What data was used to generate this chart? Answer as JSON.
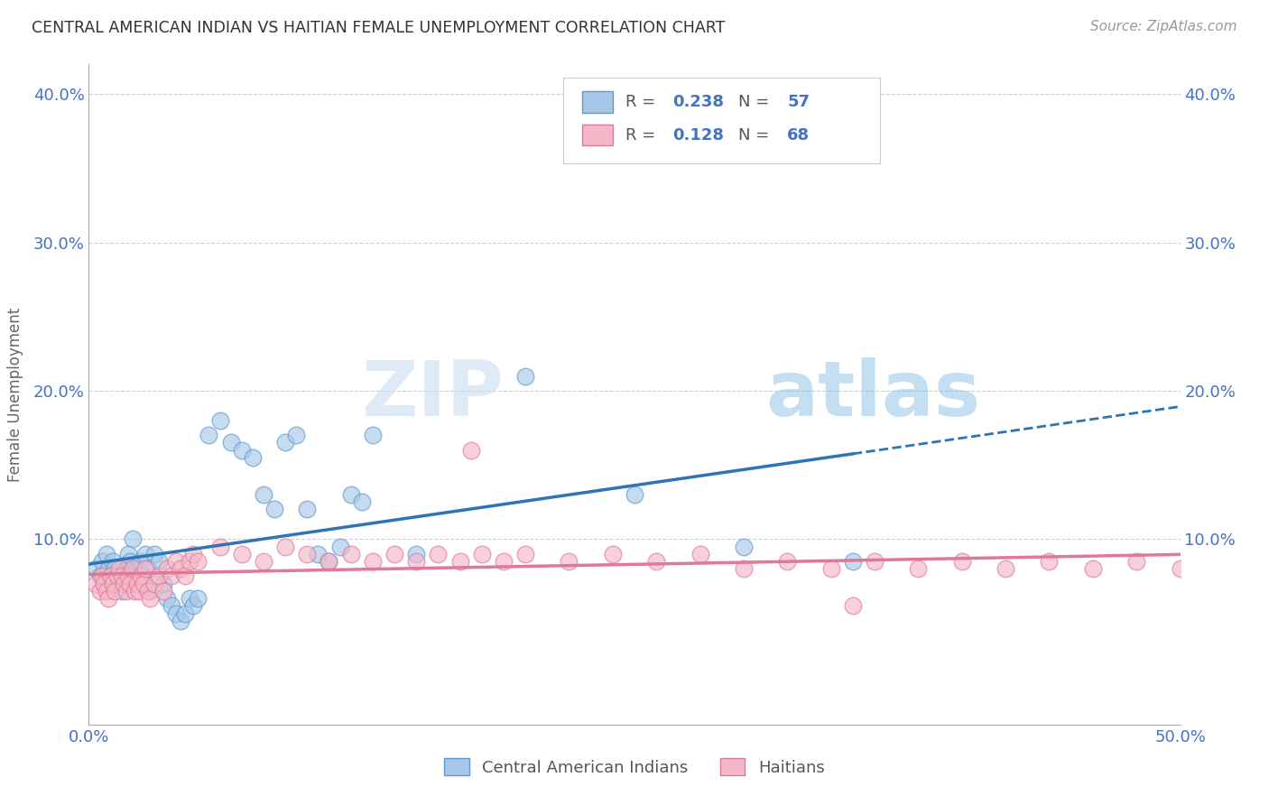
{
  "title": "CENTRAL AMERICAN INDIAN VS HAITIAN FEMALE UNEMPLOYMENT CORRELATION CHART",
  "source": "Source: ZipAtlas.com",
  "ylabel": "Female Unemployment",
  "xlim": [
    0.0,
    0.5
  ],
  "ylim": [
    -0.025,
    0.42
  ],
  "background_color": "#ffffff",
  "color_blue": "#a8c8e8",
  "color_blue_edge": "#5b9bd5",
  "color_pink": "#f4b8c8",
  "color_pink_edge": "#e07898",
  "color_blue_line": "#2e75b6",
  "color_pink_line": "#e07898",
  "color_axis_text": "#4472c4",
  "color_grid": "#d0d0d0",
  "watermark_color": "#daeaf5",
  "blue_x": [
    0.003,
    0.005,
    0.006,
    0.007,
    0.008,
    0.009,
    0.01,
    0.011,
    0.012,
    0.013,
    0.014,
    0.015,
    0.016,
    0.017,
    0.018,
    0.019,
    0.02,
    0.021,
    0.022,
    0.023,
    0.024,
    0.025,
    0.026,
    0.027,
    0.028,
    0.03,
    0.032,
    0.034,
    0.036,
    0.038,
    0.04,
    0.042,
    0.044,
    0.046,
    0.048,
    0.05,
    0.055,
    0.06,
    0.065,
    0.07,
    0.075,
    0.08,
    0.085,
    0.09,
    0.095,
    0.1,
    0.105,
    0.11,
    0.115,
    0.12,
    0.125,
    0.13,
    0.15,
    0.2,
    0.25,
    0.3,
    0.35
  ],
  "blue_y": [
    0.08,
    0.075,
    0.085,
    0.07,
    0.09,
    0.08,
    0.075,
    0.085,
    0.08,
    0.07,
    0.075,
    0.065,
    0.07,
    0.08,
    0.09,
    0.085,
    0.1,
    0.075,
    0.08,
    0.07,
    0.085,
    0.075,
    0.09,
    0.08,
    0.065,
    0.09,
    0.085,
    0.07,
    0.06,
    0.055,
    0.05,
    0.045,
    0.05,
    0.06,
    0.055,
    0.06,
    0.17,
    0.18,
    0.165,
    0.16,
    0.155,
    0.13,
    0.12,
    0.165,
    0.17,
    0.12,
    0.09,
    0.085,
    0.095,
    0.13,
    0.125,
    0.17,
    0.09,
    0.21,
    0.13,
    0.095,
    0.085
  ],
  "pink_x": [
    0.003,
    0.005,
    0.006,
    0.007,
    0.008,
    0.009,
    0.01,
    0.011,
    0.012,
    0.013,
    0.014,
    0.015,
    0.016,
    0.017,
    0.018,
    0.019,
    0.02,
    0.021,
    0.022,
    0.023,
    0.024,
    0.025,
    0.026,
    0.027,
    0.028,
    0.03,
    0.032,
    0.034,
    0.036,
    0.038,
    0.04,
    0.042,
    0.044,
    0.046,
    0.048,
    0.05,
    0.06,
    0.07,
    0.08,
    0.09,
    0.1,
    0.11,
    0.12,
    0.13,
    0.14,
    0.15,
    0.16,
    0.17,
    0.18,
    0.19,
    0.2,
    0.22,
    0.24,
    0.26,
    0.28,
    0.3,
    0.32,
    0.34,
    0.36,
    0.38,
    0.4,
    0.42,
    0.44,
    0.46,
    0.48,
    0.5,
    0.175,
    0.35
  ],
  "pink_y": [
    0.07,
    0.065,
    0.075,
    0.07,
    0.065,
    0.06,
    0.075,
    0.07,
    0.065,
    0.075,
    0.08,
    0.075,
    0.07,
    0.065,
    0.075,
    0.07,
    0.08,
    0.065,
    0.07,
    0.065,
    0.075,
    0.07,
    0.08,
    0.065,
    0.06,
    0.07,
    0.075,
    0.065,
    0.08,
    0.075,
    0.085,
    0.08,
    0.075,
    0.085,
    0.09,
    0.085,
    0.095,
    0.09,
    0.085,
    0.095,
    0.09,
    0.085,
    0.09,
    0.085,
    0.09,
    0.085,
    0.09,
    0.085,
    0.09,
    0.085,
    0.09,
    0.085,
    0.09,
    0.085,
    0.09,
    0.08,
    0.085,
    0.08,
    0.085,
    0.08,
    0.085,
    0.08,
    0.085,
    0.08,
    0.085,
    0.08,
    0.16,
    0.055
  ]
}
